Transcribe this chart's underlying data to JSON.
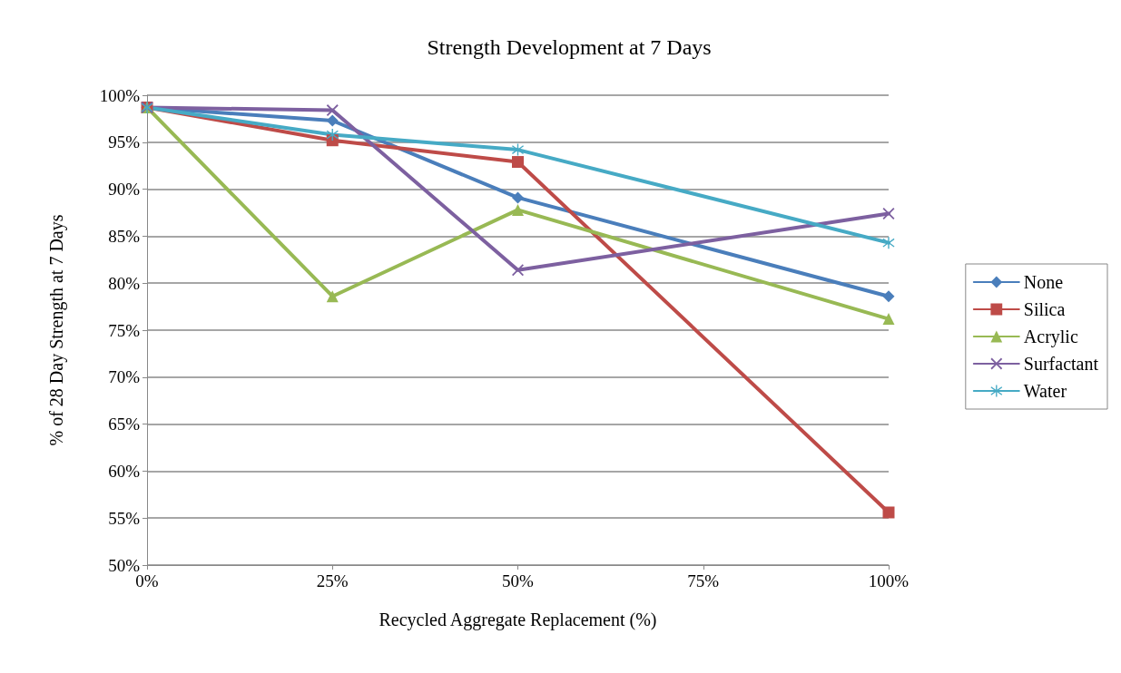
{
  "chart_data": {
    "type": "line",
    "title": "Strength Development at 7 Days",
    "xlabel": "Recycled Aggregate Replacement (%)",
    "ylabel": "% of 28 Day Strength at 7 Days",
    "x": [
      0,
      25,
      50,
      100
    ],
    "xlim": [
      0,
      100
    ],
    "xticks": [
      {
        "value": 0,
        "label": "0%"
      },
      {
        "value": 25,
        "label": "25%"
      },
      {
        "value": 50,
        "label": "50%"
      },
      {
        "value": 75,
        "label": "75%"
      },
      {
        "value": 100,
        "label": "100%"
      }
    ],
    "ylim": [
      50,
      100
    ],
    "yticks": [
      {
        "value": 50,
        "label": "50%"
      },
      {
        "value": 55,
        "label": "55%"
      },
      {
        "value": 60,
        "label": "60%"
      },
      {
        "value": 65,
        "label": "65%"
      },
      {
        "value": 70,
        "label": "70%"
      },
      {
        "value": 75,
        "label": "75%"
      },
      {
        "value": 80,
        "label": "80%"
      },
      {
        "value": 85,
        "label": "85%"
      },
      {
        "value": 90,
        "label": "90%"
      },
      {
        "value": 95,
        "label": "95%"
      },
      {
        "value": 100,
        "label": "100%"
      }
    ],
    "grid": "y",
    "legend": "right",
    "line_style": "solid",
    "series": [
      {
        "name": "None",
        "color": "#4a7ebb",
        "marker": "diamond",
        "values": [
          98.7,
          97.3,
          89.1,
          78.6
        ]
      },
      {
        "name": "Silica",
        "color": "#be4b48",
        "marker": "square",
        "values": [
          98.7,
          95.2,
          92.9,
          55.6
        ]
      },
      {
        "name": "Acrylic",
        "color": "#98b954",
        "marker": "triangle",
        "values": [
          98.7,
          78.6,
          87.8,
          76.2
        ]
      },
      {
        "name": "Surfactant",
        "color": "#7d60a0",
        "marker": "cross",
        "values": [
          98.7,
          98.4,
          81.4,
          87.4
        ]
      },
      {
        "name": "Water",
        "color": "#46aac5",
        "marker": "star",
        "values": [
          98.7,
          95.8,
          94.2,
          84.3
        ]
      }
    ]
  }
}
